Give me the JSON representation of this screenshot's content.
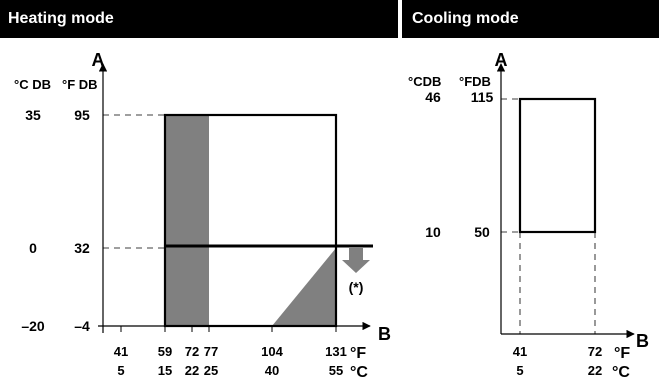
{
  "heating": {
    "title": "Heating mode",
    "axis_y": "A",
    "axis_x": "B",
    "col_c": "°C DB",
    "col_f": "°F DB",
    "y_c": [
      "35",
      "0",
      "–20"
    ],
    "y_f": [
      "95",
      "32",
      "–4"
    ],
    "x_f": [
      "41",
      "59",
      "72",
      "77",
      "104",
      "131"
    ],
    "x_c": [
      "5",
      "15",
      "22",
      "25",
      "40",
      "55"
    ],
    "unit_f": "°F",
    "unit_c": "°C",
    "note": "(*)",
    "shade_color": "#808080"
  },
  "cooling": {
    "title": "Cooling mode",
    "axis_y": "A",
    "axis_x": "B",
    "col_c": "°CDB",
    "col_f": "°FDB",
    "y_c": [
      "46",
      "10"
    ],
    "y_f": [
      "115",
      "50"
    ],
    "x_f": [
      "41",
      "72"
    ],
    "x_c": [
      "5",
      "22"
    ],
    "unit_f": "°F",
    "unit_c": "°C"
  }
}
